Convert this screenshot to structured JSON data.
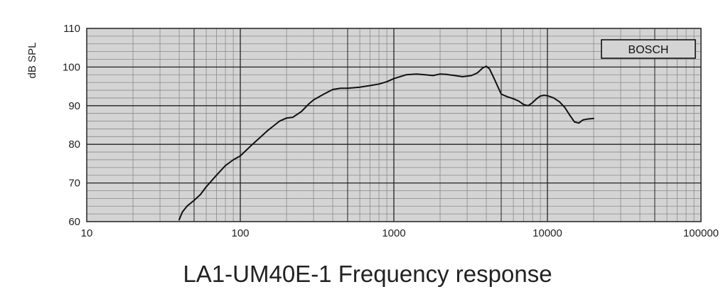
{
  "chart_data": {
    "type": "line",
    "title": "LA1-UM40E-1 Frequency response",
    "xlabel": "",
    "ylabel": "dB SPL",
    "x_scale": "log",
    "xlim": [
      10,
      100000
    ],
    "ylim": [
      60,
      110
    ],
    "x_ticks": [
      "10",
      "100",
      "1000",
      "10000",
      "100000"
    ],
    "y_ticks": [
      "60",
      "70",
      "80",
      "90",
      "100",
      "110"
    ],
    "grid": true,
    "annotation": "BOSCH",
    "colors": {
      "background": "#d4d4d4",
      "grid_minor": "#8a8a8a",
      "grid_major": "#222222",
      "line": "#111111"
    },
    "series": [
      {
        "x": [
          40,
          42,
          45,
          50,
          55,
          60,
          70,
          80,
          90,
          100,
          120,
          150,
          180,
          200,
          220,
          250,
          280,
          300,
          350,
          400,
          450,
          500,
          600,
          700,
          800,
          900,
          1000,
          1200,
          1400,
          1600,
          1800,
          2000,
          2200,
          2500,
          2800,
          3200,
          3500,
          3800,
          4000,
          4200,
          4500,
          5000,
          5500,
          6000,
          6500,
          7000,
          7500,
          8000,
          8500,
          9000,
          9500,
          10000,
          11000,
          12000,
          13000,
          14000,
          15000,
          16000,
          17000,
          18000,
          20000
        ],
        "y": [
          60.5,
          62.5,
          64.0,
          65.5,
          67.0,
          69.0,
          72.0,
          74.5,
          76.0,
          77.0,
          80.0,
          83.5,
          86.0,
          86.8,
          87.0,
          88.5,
          90.5,
          91.5,
          93.0,
          94.2,
          94.5,
          94.5,
          94.8,
          95.2,
          95.6,
          96.2,
          97.0,
          98.0,
          98.2,
          98.0,
          97.8,
          98.2,
          98.1,
          97.8,
          97.5,
          97.8,
          98.5,
          99.8,
          100.2,
          99.5,
          97.0,
          93.0,
          92.3,
          91.8,
          91.2,
          90.3,
          90.0,
          90.8,
          91.8,
          92.5,
          92.7,
          92.6,
          92.0,
          91.0,
          89.5,
          87.5,
          85.8,
          85.5,
          86.3,
          86.5,
          86.7
        ]
      }
    ]
  }
}
